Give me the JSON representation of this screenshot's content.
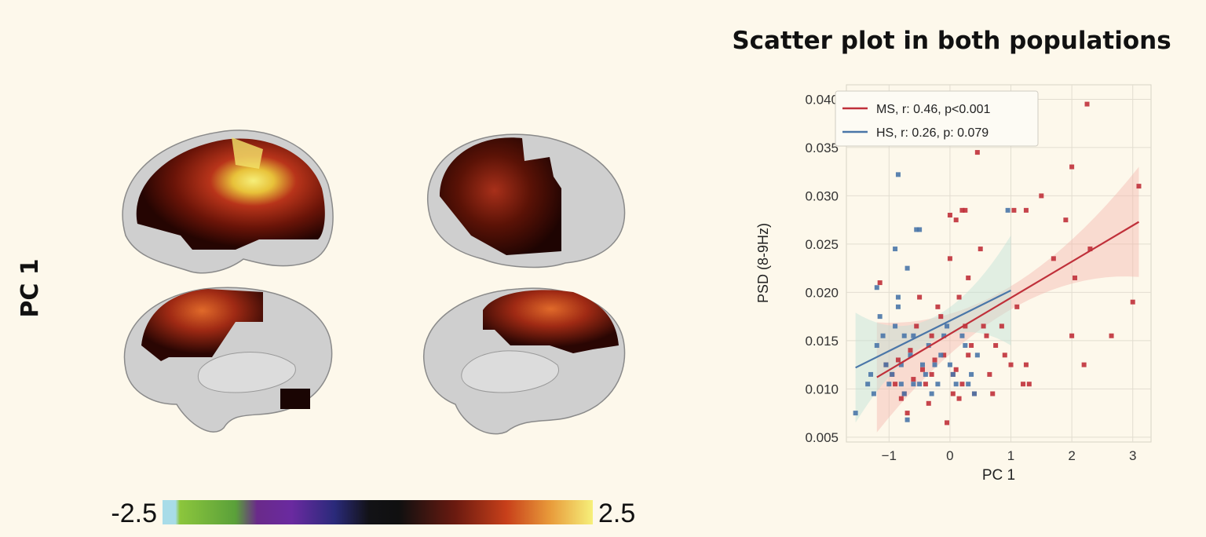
{
  "figure": {
    "row_label": "PC 1",
    "colorbar": {
      "min_label": "-2.5",
      "max_label": "2.5"
    }
  },
  "chart_data": {
    "type": "scatter",
    "title": "Scatter plot in both populations",
    "xlabel": "PC 1",
    "ylabel": "PSD (8-9Hz)",
    "xlim": [
      -1.7,
      3.3
    ],
    "ylim": [
      0.0045,
      0.0415
    ],
    "xticks": [
      -1,
      0,
      1,
      2,
      3
    ],
    "xtick_labels": [
      "−1",
      "0",
      "1",
      "2",
      "3"
    ],
    "yticks": [
      0.005,
      0.01,
      0.015,
      0.02,
      0.025,
      0.03,
      0.035,
      0.04
    ],
    "ytick_labels": [
      "0.005",
      "0.010",
      "0.015",
      "0.020",
      "0.025",
      "0.030",
      "0.035",
      "0.040"
    ],
    "grid": true,
    "legend_position": "top-left",
    "series": [
      {
        "name": "MS, r: 0.46, p<0.001",
        "color": "#c0303a",
        "regression": {
          "x": [
            -1.2,
            3.1
          ],
          "y": [
            0.0112,
            0.0273
          ]
        },
        "points": [
          [
            -1.15,
            0.021
          ],
          [
            -1.05,
            0.0125
          ],
          [
            -0.95,
            0.0115
          ],
          [
            -0.9,
            0.0105
          ],
          [
            -0.85,
            0.013
          ],
          [
            -0.8,
            0.009
          ],
          [
            -0.75,
            0.0095
          ],
          [
            -0.7,
            0.0075
          ],
          [
            -0.6,
            0.011
          ],
          [
            -0.55,
            0.0165
          ],
          [
            -0.5,
            0.0195
          ],
          [
            -0.45,
            0.012
          ],
          [
            -0.4,
            0.0105
          ],
          [
            -0.35,
            0.0085
          ],
          [
            -0.3,
            0.0115
          ],
          [
            -0.25,
            0.013
          ],
          [
            -0.2,
            0.0185
          ],
          [
            -0.15,
            0.0175
          ],
          [
            -0.1,
            0.0135
          ],
          [
            -0.05,
            0.0065
          ],
          [
            0.0,
            0.028
          ],
          [
            0.0,
            0.0235
          ],
          [
            0.05,
            0.0095
          ],
          [
            0.05,
            0.0115
          ],
          [
            0.1,
            0.0275
          ],
          [
            0.1,
            0.012
          ],
          [
            0.15,
            0.009
          ],
          [
            0.2,
            0.0285
          ],
          [
            0.2,
            0.0105
          ],
          [
            0.25,
            0.0285
          ],
          [
            0.25,
            0.0165
          ],
          [
            0.3,
            0.0215
          ],
          [
            0.3,
            0.0135
          ],
          [
            0.4,
            0.0095
          ],
          [
            0.45,
            0.0345
          ],
          [
            0.5,
            0.0245
          ],
          [
            0.55,
            0.0165
          ],
          [
            0.6,
            0.0155
          ],
          [
            0.65,
            0.0115
          ],
          [
            0.7,
            0.0095
          ],
          [
            0.85,
            0.0165
          ],
          [
            0.9,
            0.0135
          ],
          [
            1.0,
            0.0125
          ],
          [
            1.05,
            0.0285
          ],
          [
            1.1,
            0.0185
          ],
          [
            1.2,
            0.0105
          ],
          [
            1.25,
            0.0125
          ],
          [
            1.25,
            0.0285
          ],
          [
            1.3,
            0.0105
          ],
          [
            1.5,
            0.03
          ],
          [
            1.7,
            0.0235
          ],
          [
            1.9,
            0.0275
          ],
          [
            2.0,
            0.033
          ],
          [
            2.0,
            0.0155
          ],
          [
            2.05,
            0.0215
          ],
          [
            2.2,
            0.0125
          ],
          [
            2.25,
            0.0395
          ],
          [
            2.3,
            0.0245
          ],
          [
            2.65,
            0.0155
          ],
          [
            3.0,
            0.019
          ],
          [
            3.1,
            0.031
          ],
          [
            -0.3,
            0.0155
          ],
          [
            0.35,
            0.0145
          ],
          [
            -0.65,
            0.014
          ],
          [
            0.15,
            0.0195
          ],
          [
            0.75,
            0.0145
          ]
        ]
      },
      {
        "name": "HS, r: 0.26, p: 0.079",
        "color": "#4a76a8",
        "regression": {
          "x": [
            -1.55,
            1.0
          ],
          "y": [
            0.0122,
            0.0202
          ]
        },
        "points": [
          [
            -1.55,
            0.0075
          ],
          [
            -1.35,
            0.0105
          ],
          [
            -1.3,
            0.0115
          ],
          [
            -1.25,
            0.0095
          ],
          [
            -1.2,
            0.0145
          ],
          [
            -1.2,
            0.0205
          ],
          [
            -1.15,
            0.0175
          ],
          [
            -1.1,
            0.0155
          ],
          [
            -1.05,
            0.0125
          ],
          [
            -1.0,
            0.0105
          ],
          [
            -0.95,
            0.0115
          ],
          [
            -0.9,
            0.0165
          ],
          [
            -0.85,
            0.0185
          ],
          [
            -0.85,
            0.0195
          ],
          [
            -0.85,
            0.0322
          ],
          [
            -0.8,
            0.0105
          ],
          [
            -0.8,
            0.0125
          ],
          [
            -0.75,
            0.0095
          ],
          [
            -0.75,
            0.0155
          ],
          [
            -0.7,
            0.0068
          ],
          [
            -0.7,
            0.0225
          ],
          [
            -0.65,
            0.0135
          ],
          [
            -0.6,
            0.0155
          ],
          [
            -0.55,
            0.0265
          ],
          [
            -0.5,
            0.0105
          ],
          [
            -0.5,
            0.0265
          ],
          [
            -0.45,
            0.0125
          ],
          [
            -0.4,
            0.0115
          ],
          [
            -0.35,
            0.0145
          ],
          [
            -0.3,
            0.0095
          ],
          [
            -0.25,
            0.0125
          ],
          [
            -0.2,
            0.0105
          ],
          [
            -0.15,
            0.0135
          ],
          [
            -0.1,
            0.0155
          ],
          [
            -0.05,
            0.0165
          ],
          [
            0.0,
            0.0125
          ],
          [
            0.05,
            0.0115
          ],
          [
            0.1,
            0.0105
          ],
          [
            0.2,
            0.0155
          ],
          [
            0.25,
            0.0145
          ],
          [
            0.3,
            0.0105
          ],
          [
            0.35,
            0.0115
          ],
          [
            0.4,
            0.0095
          ],
          [
            0.45,
            0.0135
          ],
          [
            0.95,
            0.0285
          ],
          [
            -0.9,
            0.0245
          ],
          [
            -0.6,
            0.0105
          ]
        ]
      }
    ]
  }
}
